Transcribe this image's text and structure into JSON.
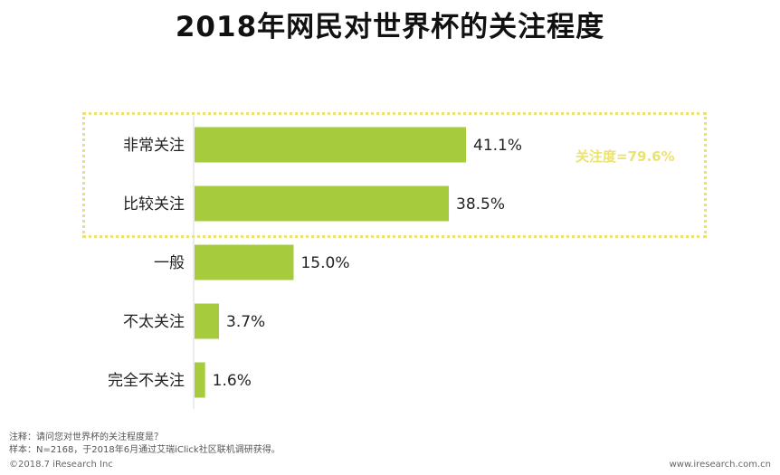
{
  "chart_data": {
    "type": "bar",
    "orientation": "horizontal",
    "title": "2018年网民对世界杯的关注程度",
    "categories": [
      "非常关注",
      "比较关注",
      "一般",
      "不太关注",
      "完全不关注"
    ],
    "values": [
      41.1,
      38.5,
      15.0,
      3.7,
      1.6
    ],
    "value_labels": [
      "41.1%",
      "38.5%",
      "15.0%",
      "3.7%",
      "1.6%"
    ],
    "unit": "%",
    "xlim": [
      0,
      41.1
    ],
    "bar_color": "#a6cb3c",
    "grid": false,
    "annotation": {
      "text": "关注度=79.6%",
      "covers_categories": [
        "非常关注",
        "比较关注"
      ],
      "color": "#ece36e"
    }
  },
  "footer": {
    "note": "注释：请问您对世界杯的关注程度是？",
    "sample": "样本：N=2168，于2018年6月通过艾瑞iClick社区联机调研获得。",
    "copyright": "©2018.7 iResearch Inc",
    "website": "www.iresearch.com.cn"
  }
}
